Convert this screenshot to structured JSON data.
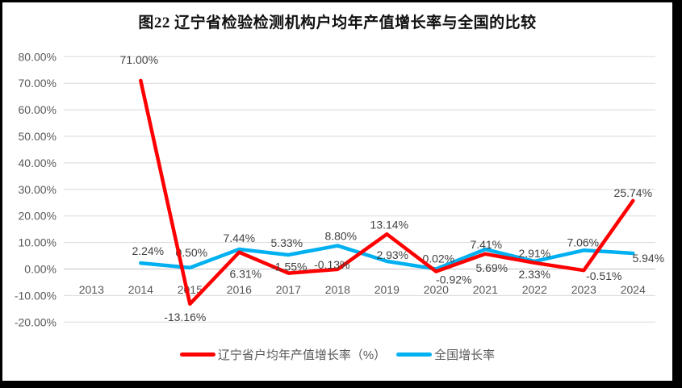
{
  "figure": {
    "title": "图22  辽宁省检验检测机构户均年产值增长率与全国的比较"
  },
  "chart_data": {
    "type": "line",
    "title": "图22  辽宁省检验检测机构户均年产值增长率与全国的比较",
    "x_categories": [
      2013,
      2014,
      2015,
      2016,
      2017,
      2018,
      2019,
      2020,
      2021,
      2022,
      2023,
      2024
    ],
    "series": [
      {
        "name": "辽宁省户均年产值增长率（%）",
        "color": "#FF0000",
        "years": [
          2014,
          2015,
          2016,
          2017,
          2018,
          2019,
          2020,
          2021,
          2022,
          2023,
          2024
        ],
        "values": [
          71.0,
          -13.16,
          6.31,
          -1.55,
          -0.13,
          13.14,
          -0.92,
          5.69,
          2.33,
          -0.51,
          25.74
        ],
        "label_offsets": [
          [
            -2,
            -26
          ],
          [
            -6,
            16
          ],
          [
            8,
            27
          ],
          [
            1,
            -8
          ],
          [
            -7,
            -6
          ],
          [
            3,
            -12
          ],
          [
            22,
            10
          ],
          [
            8,
            17
          ],
          [
            0,
            14
          ],
          [
            25,
            7
          ],
          [
            0,
            -10
          ]
        ]
      },
      {
        "name": "全国增长率",
        "color": "#00B0F0",
        "years": [
          2014,
          2015,
          2016,
          2017,
          2018,
          2019,
          2020,
          2021,
          2022,
          2023,
          2024
        ],
        "values": [
          2.24,
          0.5,
          7.44,
          5.33,
          8.8,
          2.93,
          0.02,
          7.41,
          2.91,
          7.06,
          5.94
        ],
        "label_offsets": [
          [
            9,
            -15
          ],
          [
            2,
            -19
          ],
          [
            0,
            -14
          ],
          [
            -2,
            -15
          ],
          [
            4,
            -12
          ],
          [
            7,
            -8
          ],
          [
            3,
            -13
          ],
          [
            1,
            -6
          ],
          [
            0,
            -10
          ],
          [
            -1,
            -10
          ],
          [
            19,
            6
          ]
        ]
      }
    ],
    "ylim": [
      -20,
      80
    ],
    "ytick_step": 10,
    "ytick_labels": [
      "80.00%",
      "70.00%",
      "60.00%",
      "50.00%",
      "40.00%",
      "30.00%",
      "20.00%",
      "10.00%",
      "0.00%",
      "-10.00%",
      "-20.00%"
    ],
    "value_label_format": "0.00%",
    "grid": true,
    "legend_position": "bottom"
  },
  "style": {
    "background": "#FFFFFF",
    "frame_border_color": "#000000",
    "grid_color": "#D9D9D9",
    "axis_line_color": "#C0C0C0",
    "axis_text_color": "#595959",
    "label_text_color": "#404040",
    "legend_text_color": "#595959",
    "title_color": "#111111"
  }
}
